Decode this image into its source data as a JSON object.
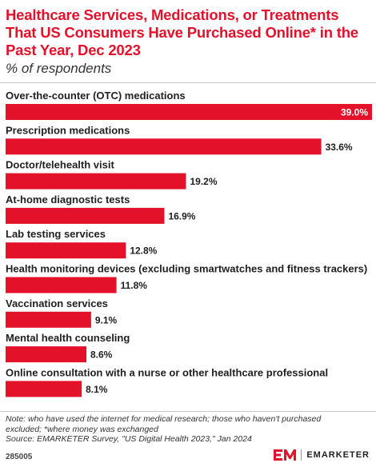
{
  "header": {
    "title": "Healthcare Services, Medications, or Treatments That US Consumers Have Purchased Online* in the Past Year, Dec 2023",
    "subtitle": "% of respondents"
  },
  "chart_data": {
    "type": "bar",
    "orientation": "horizontal",
    "categories": [
      "Over-the-counter (OTC) medications",
      "Prescription medications",
      "Doctor/telehealth visit",
      "At-home diagnostic tests",
      "Lab testing services",
      "Health monitoring devices (excluding smartwatches and fitness trackers)",
      "Vaccination services",
      "Mental health counseling",
      "Online consultation with a nurse or other healthcare professional"
    ],
    "values": [
      39.0,
      33.6,
      19.2,
      16.9,
      12.8,
      11.8,
      9.1,
      8.6,
      8.1
    ],
    "value_labels": [
      "39.0%",
      "33.6%",
      "19.2%",
      "16.9%",
      "12.8%",
      "11.8%",
      "9.1%",
      "8.6%",
      "8.1%"
    ],
    "xlim": [
      0,
      39.0
    ],
    "bar_color": "#e4112a",
    "grid": false,
    "legend": "none"
  },
  "footer": {
    "note_lines": [
      "Note: who have used the internet for medical research; those who haven't purchased",
      "excluded; *where money was exchanged",
      "Source: EMARKETER Survey, \"US Digital Health 2023,\" Jan 2024"
    ],
    "chart_id": "285005",
    "brand": "EMARKETER"
  }
}
